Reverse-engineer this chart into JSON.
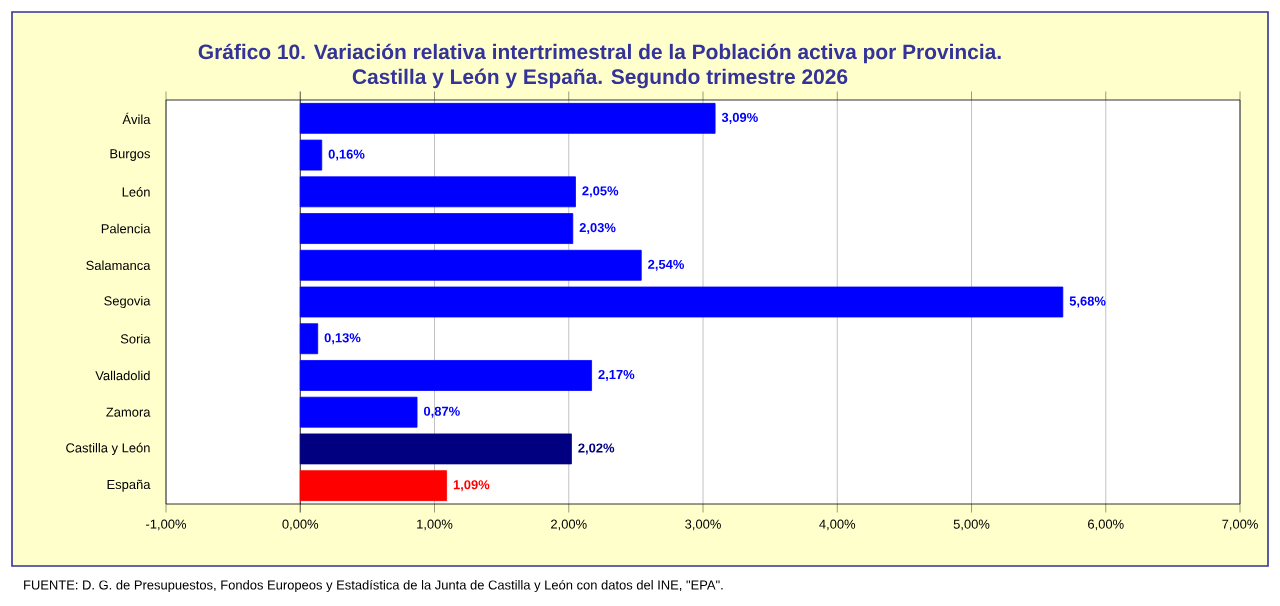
{
  "chart_data": {
    "type": "bar",
    "orientation": "horizontal",
    "title": "Gráfico 10.  Variación relativa intertrimestral de la Población activa por Provincia.\nCastilla y León y España. Segundo trimestre 2026",
    "categories": [
      "Ávila",
      "Burgos",
      "León",
      "Palencia",
      "Salamanca",
      "Segovia",
      "Soria",
      "Valladolid",
      "Zamora",
      "Castilla y León",
      "España"
    ],
    "values": [
      3.09,
      0.16,
      2.05,
      2.03,
      2.54,
      5.68,
      0.13,
      2.17,
      0.87,
      2.02,
      1.09
    ],
    "value_labels": [
      "3,09%",
      "0,16%",
      "2,05%",
      "2,03%",
      "2,54%",
      "5,68%",
      "0,13%",
      "2,17%",
      "0,87%",
      "2,02%",
      "1,09%"
    ],
    "colors": [
      "#0000ff",
      "#0000ff",
      "#0000ff",
      "#0000ff",
      "#0000ff",
      "#0000ff",
      "#0000ff",
      "#0000ff",
      "#0000ff",
      "#000080",
      "#ff0000"
    ],
    "xlim": [
      -1,
      7
    ],
    "xticks": [
      {
        "value": -1,
        "label": "-1,00%"
      },
      {
        "value": 0,
        "label": "0,00%"
      },
      {
        "value": 1,
        "label": "1,00%"
      },
      {
        "value": 2,
        "label": "2,00%"
      },
      {
        "value": 3,
        "label": "3,00%"
      },
      {
        "value": 4,
        "label": "4,00%"
      },
      {
        "value": 5,
        "label": "5,00%"
      },
      {
        "value": 6,
        "label": "6,00%"
      },
      {
        "value": 7,
        "label": "7,00%"
      }
    ],
    "grid": "x",
    "annotations": [
      "FUENTE: D. G. de Presupuestos, Fondos Europeos y Estadística de la Junta de Castilla y León con datos del INE, \"EPA\"."
    ]
  }
}
